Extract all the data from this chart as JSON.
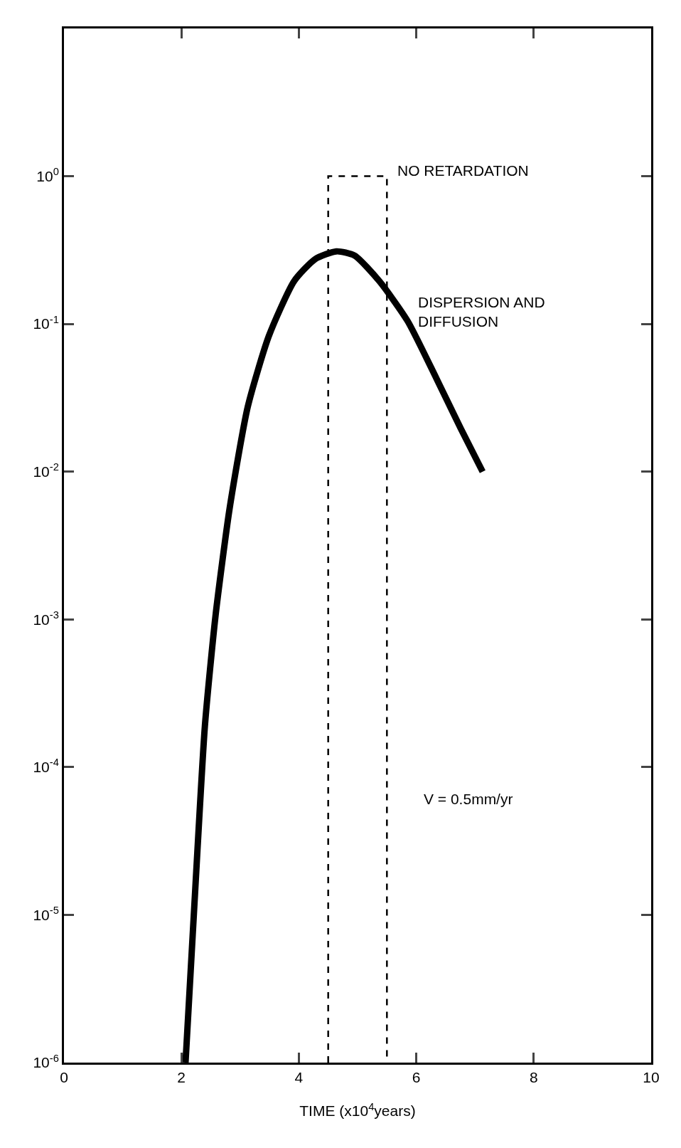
{
  "chart_data": {
    "type": "line",
    "xlabel": "TIME (x10$^{4}$years)",
    "xlim": [
      0,
      10
    ],
    "xticks": [
      0,
      2,
      4,
      6,
      8,
      10
    ],
    "ylim": [
      1e-06,
      10
    ],
    "log": "y",
    "yticks": [
      {
        "value": 1,
        "label": "10$^{0}$"
      },
      {
        "value": 0.1,
        "label": "10$^{-1}$"
      },
      {
        "value": 0.01,
        "label": "10$^{-2}$"
      },
      {
        "value": 0.001,
        "label": "10$^{-3}$"
      },
      {
        "value": 0.0001,
        "label": "10$^{-4}$"
      },
      {
        "value": 1e-05,
        "label": "10$^{-5}$"
      },
      {
        "value": 1e-06,
        "label": "10$^{-6}$"
      }
    ],
    "grid": false,
    "legend": false,
    "marker": "none",
    "series": [
      {
        "name": "NO RETARDATION",
        "color": "#000000",
        "line_style": "dashed",
        "x": [
          4.5,
          4.5,
          5.5,
          5.5
        ],
        "values": [
          1e-06,
          1,
          1,
          1e-06
        ]
      },
      {
        "name": "DISPERSION AND DIFFUSION",
        "color": "#000000",
        "line_style": "solid",
        "x": [
          2.07,
          2.22,
          2.4,
          2.58,
          2.82,
          3.13,
          3.49,
          3.92,
          4.28,
          4.64,
          4.95,
          5.37,
          5.85,
          6.34,
          6.76,
          7.13
        ],
        "values": [
          1e-06,
          1.15e-05,
          0.00019,
          0.00105,
          0.0056,
          0.0275,
          0.083,
          0.195,
          0.275,
          0.31,
          0.29,
          0.195,
          0.105,
          0.043,
          0.0195,
          0.01
        ]
      }
    ],
    "annotations": [
      "V = 0.5mm/yr"
    ]
  }
}
